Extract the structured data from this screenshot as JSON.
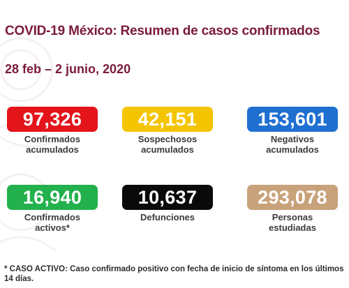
{
  "header": {
    "title": "COVID-19 México: Resumen de casos confirmados",
    "date_range": "28 feb – 2 junio, 2020"
  },
  "stats": [
    {
      "value": "97,326",
      "label_line1": "Confirmados",
      "label_line2": "acumulados",
      "color": "#e4141b"
    },
    {
      "value": "42,151",
      "label_line1": "Sospechosos",
      "label_line2": "acumulados",
      "color": "#f5c400"
    },
    {
      "value": "153,601",
      "label_line1": "Negativos",
      "label_line2": "acumulados",
      "color": "#1f6fd1"
    },
    {
      "value": "16,940",
      "label_line1": "Confirmados",
      "label_line2": "activos*",
      "color": "#22b14c"
    },
    {
      "value": "10,637",
      "label_line1": "Defunciones",
      "label_line2": "",
      "color": "#0a0a0a"
    },
    {
      "value": "293,078",
      "label_line1": "Personas",
      "label_line2": "estudiadas",
      "color": "#c7a27a"
    }
  ],
  "footnote": "* CASO ACTIVO: Caso confirmado positivo con fecha de inicio de síntoma en los últimos 14 días."
}
